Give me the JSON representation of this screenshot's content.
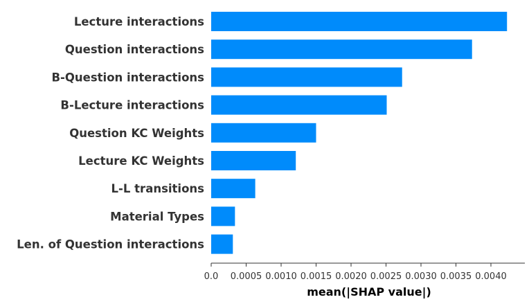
{
  "chart_data": {
    "type": "bar",
    "orientation": "horizontal",
    "categories": [
      "Lecture interactions",
      "Question interactions",
      "B-Question interactions",
      "B-Lecture interactions",
      "Question KC Weights",
      "Lecture KC Weights",
      "L-L transitions",
      "Material Types",
      "Len. of Question interactions"
    ],
    "values": [
      0.00423,
      0.00373,
      0.00273,
      0.00251,
      0.0015,
      0.00121,
      0.00063,
      0.00034,
      0.00031
    ],
    "xlabel": "mean(|SHAP value|)",
    "xlim": [
      0,
      0.0045
    ],
    "xticks": [
      0,
      0.0005,
      0.001,
      0.0015,
      0.002,
      0.0025,
      0.003,
      0.0035,
      0.004
    ],
    "xtick_labels": [
      "0.0",
      "0.0005",
      "0.0010",
      "0.0015",
      "0.0020",
      "0.0025",
      "0.0030",
      "0.0035",
      "0.0040"
    ],
    "bar_color": "#008bfb",
    "grid": false,
    "legend": "none"
  }
}
